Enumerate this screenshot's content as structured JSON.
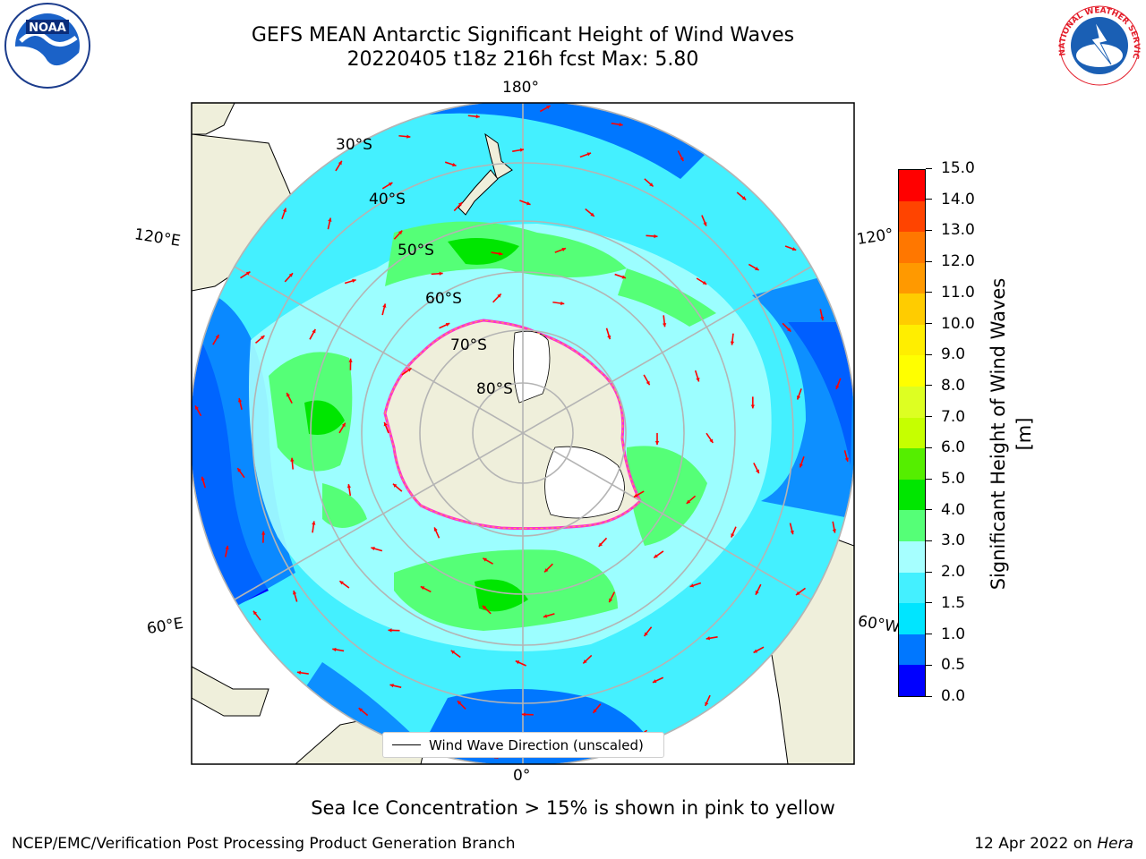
{
  "title": {
    "line1": "GEFS MEAN Antarctic Significant Height of Wind Waves",
    "line2": "20220405 t18z 216h fcst   Max: 5.80"
  },
  "logos": {
    "left": "NOAA",
    "right": "NATIONAL WEATHER SERVICE"
  },
  "map": {
    "projection": "south-polar-stereographic",
    "lon_labels": [
      "180°",
      "120°E",
      "120°",
      "60°E",
      "60°W",
      "0°"
    ],
    "lat_labels": [
      "30°S",
      "40°S",
      "50°S",
      "60°S",
      "70°S",
      "80°S"
    ],
    "legend_label": "Wind Wave Direction (unscaled)",
    "colors": {
      "land": "#efefdb",
      "ice_shelf": "#ffffff",
      "arrow": "#ff0000",
      "gridline": "#b4b4b4",
      "sea_ice_edge": "#ff33cc"
    }
  },
  "colorbar": {
    "label": "Significant Height of Wind Waves [m]",
    "ticks": [
      "0.0",
      "0.5",
      "1.0",
      "1.5",
      "2.0",
      "3.0",
      "4.0",
      "5.0",
      "6.0",
      "7.0",
      "8.0",
      "9.0",
      "10.0",
      "11.0",
      "12.0",
      "13.0",
      "14.0",
      "15.0"
    ],
    "colors": [
      "#0000ff",
      "#0077ff",
      "#00e5ff",
      "#44f0ff",
      "#a6ffff",
      "#55ff77",
      "#00e600",
      "#55ee00",
      "#c6ff00",
      "#ddff22",
      "#ffff00",
      "#ffee00",
      "#ffcc00",
      "#ff9900",
      "#ff7700",
      "#ff4400",
      "#ff0000"
    ]
  },
  "footnote": "Sea Ice Concentration > 15% is shown in pink to yellow",
  "footer": {
    "left": "NCEP/EMC/Verification Post Processing Product Generation Branch",
    "right_prefix": "12 Apr 2022 on ",
    "right_host": "Hera"
  }
}
